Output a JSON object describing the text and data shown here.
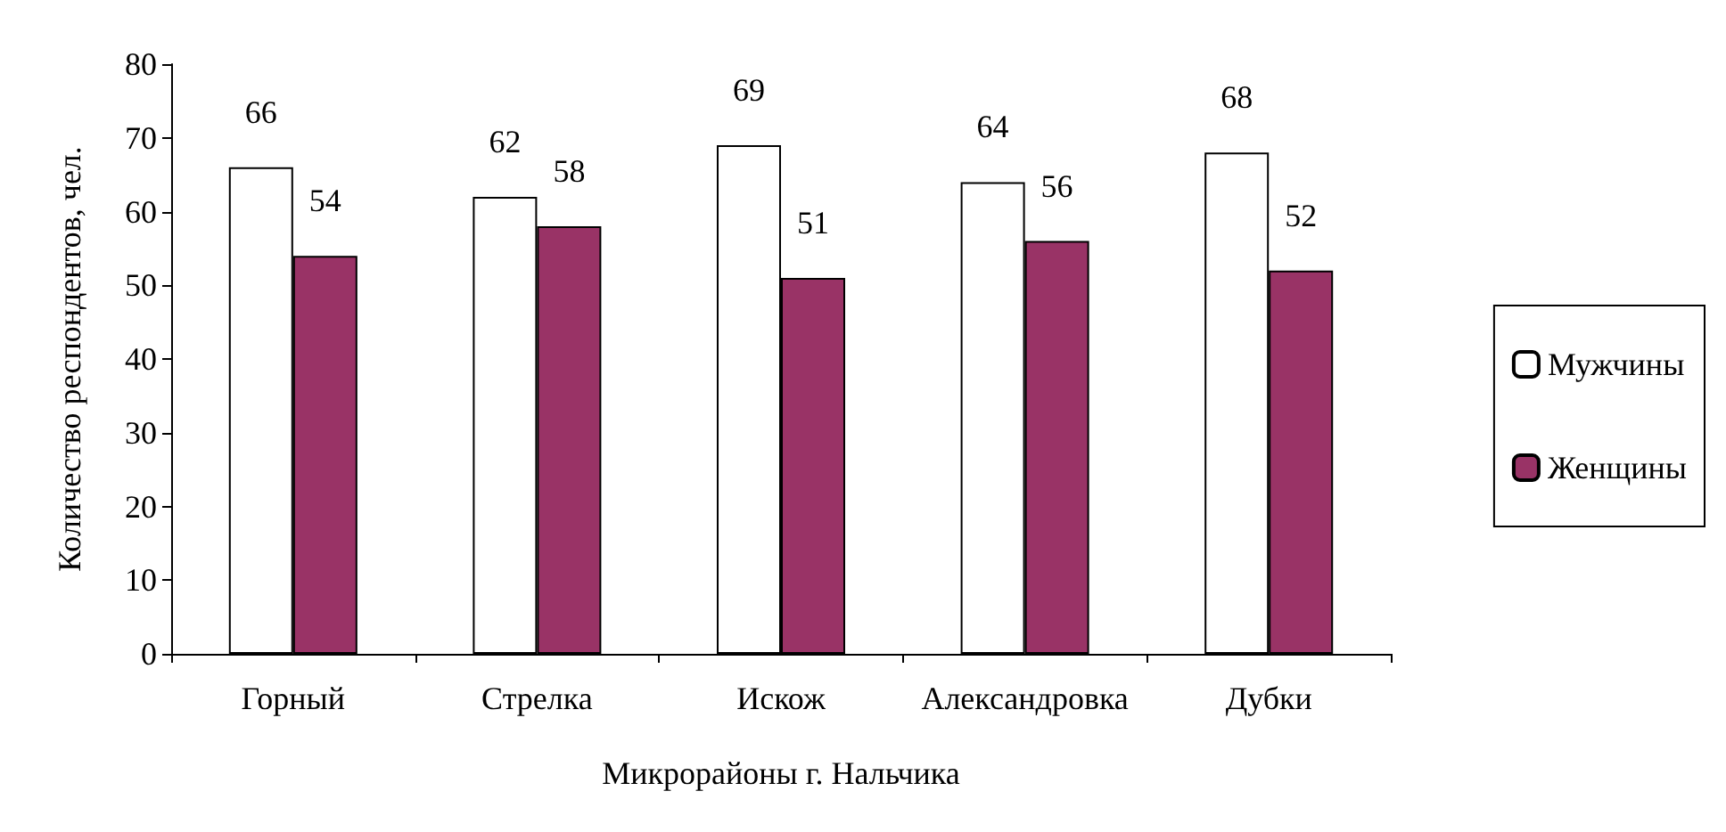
{
  "chart_data": {
    "type": "bar",
    "xlabel": "Микрорайоны г. Нальчика",
    "ylabel": "Количество респондентов, чел.",
    "categories": [
      "Горный",
      "Стрелка",
      "Искож",
      "Александровка",
      "Дубки"
    ],
    "series": [
      {
        "name": "Мужчины",
        "color": "#ffffff",
        "values": [
          66,
          62,
          69,
          64,
          68
        ]
      },
      {
        "name": "Женщины",
        "color": "#993366",
        "values": [
          54,
          58,
          51,
          56,
          52
        ]
      }
    ],
    "ylim": [
      0,
      80
    ],
    "yticks": [
      0,
      10,
      20,
      30,
      40,
      50,
      60,
      70,
      80
    ],
    "data_labels": true,
    "legend": "right",
    "grid": false
  }
}
